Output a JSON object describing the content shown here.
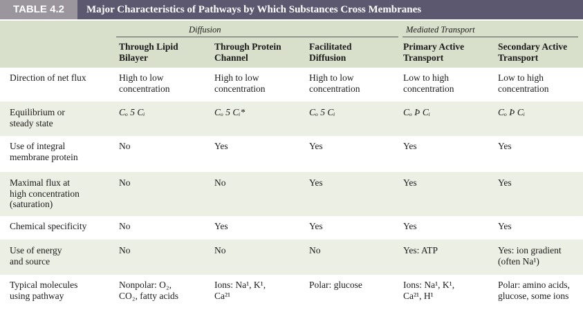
{
  "title": {
    "tag": "TABLE 4.2",
    "text": "Major Characteristics of Pathways by Which Substances Cross Membranes"
  },
  "groups": {
    "diffusion": "Diffusion",
    "mediated": "Mediated Transport"
  },
  "columns": [
    {
      "line1": "Through Lipid",
      "line2": "Bilayer"
    },
    {
      "line1": "Through Protein",
      "line2": "Channel"
    },
    {
      "line1": "Facilitated",
      "line2": "Diffusion"
    },
    {
      "line1": "Primary Active",
      "line2": "Transport"
    },
    {
      "line1": "Secondary Active",
      "line2": "Transport"
    }
  ],
  "rows": [
    {
      "label": [
        "Direction of net flux"
      ],
      "cells": [
        [
          "High to low",
          "concentration"
        ],
        [
          "High to low",
          "concentration"
        ],
        [
          "High to low",
          "concentration"
        ],
        [
          "Low to high",
          "concentration"
        ],
        [
          "Low to high",
          "concentration"
        ]
      ]
    },
    {
      "label": [
        "Equilibrium or",
        "steady state"
      ],
      "cells": [
        [
          "Cₒ 5 Cᵢ"
        ],
        [
          "Cₒ 5 Cᵢ*"
        ],
        [
          "Cₒ 5 Cᵢ"
        ],
        [
          "Cₒ Þ Cᵢ"
        ],
        [
          "Cₒ Þ Cᵢ"
        ]
      ]
    },
    {
      "label": [
        "Use of integral",
        "membrane protein"
      ],
      "cells": [
        [
          "No"
        ],
        [
          "Yes"
        ],
        [
          "Yes"
        ],
        [
          "Yes"
        ],
        [
          "Yes"
        ]
      ]
    },
    {
      "label": [
        "Maximal flux at",
        "high concentration",
        "(saturation)"
      ],
      "cells": [
        [
          "No"
        ],
        [
          "No"
        ],
        [
          "Yes"
        ],
        [
          "Yes"
        ],
        [
          "Yes"
        ]
      ]
    },
    {
      "label": [
        "Chemical specificity"
      ],
      "cells": [
        [
          "No"
        ],
        [
          "Yes"
        ],
        [
          "Yes"
        ],
        [
          "Yes"
        ],
        [
          "Yes"
        ]
      ]
    },
    {
      "label": [
        "Use of energy",
        "and source"
      ],
      "cells": [
        [
          "No"
        ],
        [
          "No"
        ],
        [
          "No"
        ],
        [
          "Yes: ATP"
        ],
        [
          "Yes: ion gradient",
          "(often Na¹)"
        ]
      ]
    },
    {
      "label": [
        "Typical molecules",
        "using pathway"
      ],
      "cells": [
        [
          "Nonpolar: O₂,",
          "CO₂, fatty acids"
        ],
        [
          "Ions: Na¹, K¹,",
          "Ca²¹"
        ],
        [
          "Polar: glucose"
        ],
        [
          "Ions: Na¹, K¹,",
          "Ca²¹, H¹"
        ],
        [
          "Polar: amino acids,",
          "glucose, some ions"
        ]
      ]
    }
  ]
}
